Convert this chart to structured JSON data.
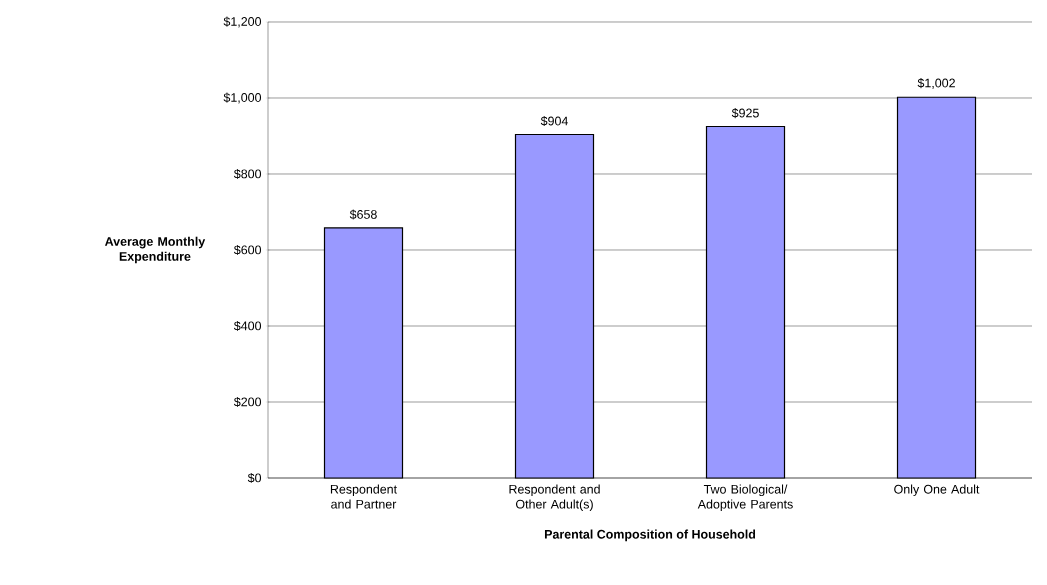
{
  "chart_data": {
    "type": "bar",
    "xlabel": "Parental Composition of Household",
    "ylabel": "Average Monthly Expenditure",
    "categories": [
      "Respondent and Partner",
      "Respondent and Other Adult(s)",
      "Two Biological/ Adoptive Parents",
      "Only One Adult"
    ],
    "values": [
      658,
      904,
      925,
      1002
    ],
    "value_labels": [
      "$658",
      "$904",
      "$925",
      "$1,002"
    ],
    "color": "#9999ff",
    "ylim": [
      0,
      1200
    ],
    "yticks": [
      {
        "value": 0,
        "label": "$0"
      },
      {
        "value": 200,
        "label": "$200"
      },
      {
        "value": 400,
        "label": "$400"
      },
      {
        "value": 600,
        "label": "$600"
      },
      {
        "value": 800,
        "label": "$800"
      },
      {
        "value": 1000,
        "label": "$1,000"
      },
      {
        "value": 1200,
        "label": "$1,200"
      }
    ],
    "grid": "y"
  }
}
